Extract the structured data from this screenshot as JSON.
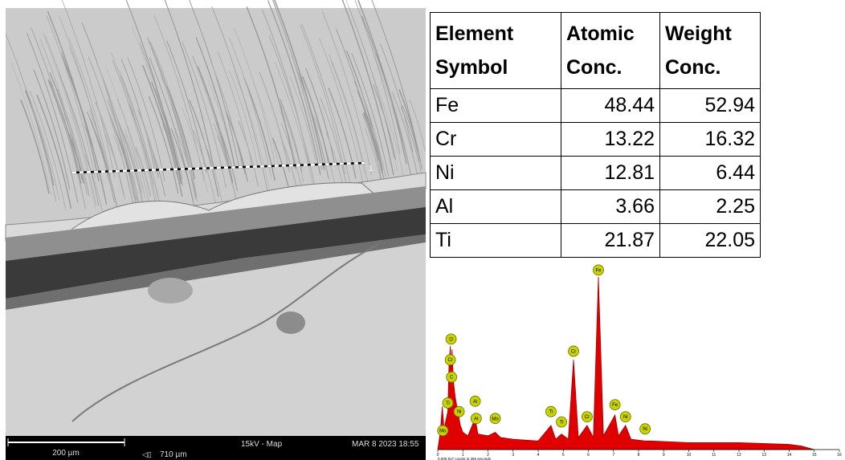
{
  "sem_image": {
    "scale_bar": "200 µm",
    "field_width": "710 µm",
    "mode": "15kV - Map",
    "timestamp": "MAR 8 2023 18:55",
    "line_marker": "1"
  },
  "table": {
    "header": [
      [
        "Element",
        "Symbol"
      ],
      [
        "Atomic",
        "Conc."
      ],
      [
        "Weight",
        "Conc."
      ]
    ],
    "rows": [
      [
        "Fe",
        48.44,
        52.94
      ],
      [
        "Cr",
        13.22,
        16.32
      ],
      [
        "Ni",
        12.81,
        6.44
      ],
      [
        "Al",
        3.66,
        2.25
      ],
      [
        "Ti",
        21.87,
        22.05
      ]
    ]
  },
  "chart_data": {
    "type": "area",
    "color": "#e00000",
    "x": [
      0,
      0.1,
      0.18,
      0.25,
      0.4,
      0.45,
      0.5,
      0.53,
      0.57,
      0.62,
      0.7,
      0.8,
      0.9,
      1.0,
      1.2,
      1.49,
      1.6,
      2.0,
      2.29,
      2.5,
      3.0,
      4.0,
      4.51,
      4.7,
      4.93,
      5.2,
      5.41,
      5.6,
      5.95,
      6.2,
      6.4,
      6.6,
      7.06,
      7.2,
      7.48,
      7.7,
      8.26,
      8.5,
      10,
      12,
      14,
      14.5,
      15
    ],
    "values": [
      0,
      10,
      25,
      12,
      22,
      50,
      60,
      48,
      58,
      40,
      30,
      22,
      14,
      10,
      8,
      18,
      9,
      8,
      10,
      7,
      6,
      5,
      14,
      6,
      9,
      6,
      52,
      7,
      14,
      7,
      100,
      8,
      20,
      8,
      14,
      6,
      5,
      5,
      4,
      4,
      3,
      2,
      0
    ],
    "xlim": [
      0,
      16
    ],
    "ylim": [
      0,
      100
    ],
    "xticks": [
      0,
      1,
      2,
      3,
      4,
      5,
      6,
      7,
      8,
      9,
      10,
      11,
      12,
      13,
      14,
      15,
      16
    ],
    "peak_labels": [
      {
        "text": "Fe",
        "x": 6.4,
        "y": 104
      },
      {
        "text": "Cr",
        "x": 5.41,
        "y": 57
      },
      {
        "text": "Fe",
        "x": 7.06,
        "y": 26
      },
      {
        "text": "Ni",
        "x": 7.48,
        "y": 19
      },
      {
        "text": "Ni",
        "x": 8.26,
        "y": 12
      },
      {
        "text": "Cr",
        "x": 5.95,
        "y": 19
      },
      {
        "text": "Ti",
        "x": 4.51,
        "y": 22
      },
      {
        "text": "Ti",
        "x": 4.93,
        "y": 16
      },
      {
        "text": "Mo",
        "x": 2.29,
        "y": 18
      },
      {
        "text": "Al",
        "x": 1.49,
        "y": 28
      },
      {
        "text": "Al",
        "x": 1.53,
        "y": 18
      },
      {
        "text": "O",
        "x": 0.53,
        "y": 64
      },
      {
        "text": "Cr",
        "x": 0.5,
        "y": 52
      },
      {
        "text": "C",
        "x": 0.55,
        "y": 42
      },
      {
        "text": "Ni",
        "x": 0.85,
        "y": 22
      },
      {
        "text": "Ti",
        "x": 0.4,
        "y": 27
      },
      {
        "text": "Mo",
        "x": 0.2,
        "y": 11
      }
    ],
    "note": "0.005 817 counts in 256 seconds"
  }
}
